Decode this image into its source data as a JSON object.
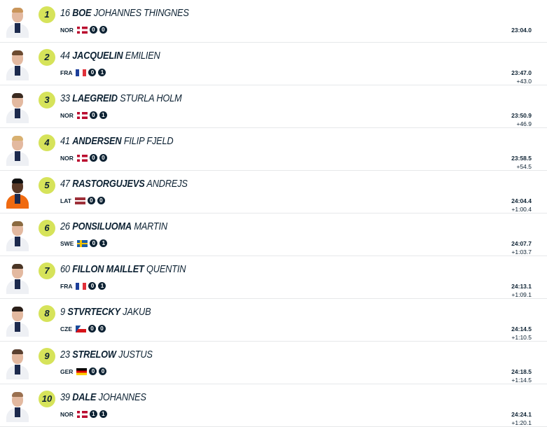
{
  "colors": {
    "rank_badge": "#d6e35a",
    "text": "#0d2233",
    "shot_badge": "#0d2233"
  },
  "athletes": [
    {
      "rank": "1",
      "bib": "16",
      "last": "BOE",
      "first": "JOHANNES THINGNES",
      "nation": "NOR",
      "flag": "norway-flag",
      "shots": [
        "0",
        "0"
      ],
      "time": "23:04.0",
      "gap": ""
    },
    {
      "rank": "2",
      "bib": "44",
      "last": "JACQUELIN",
      "first": "EMILIEN",
      "nation": "FRA",
      "flag": "france-flag",
      "shots": [
        "0",
        "1"
      ],
      "time": "23:47.0",
      "gap": "+43.0"
    },
    {
      "rank": "3",
      "bib": "33",
      "last": "LAEGREID",
      "first": "STURLA HOLM",
      "nation": "NOR",
      "flag": "norway-flag",
      "shots": [
        "0",
        "1"
      ],
      "time": "23:50.9",
      "gap": "+46.9"
    },
    {
      "rank": "4",
      "bib": "41",
      "last": "ANDERSEN",
      "first": "FILIP FJELD",
      "nation": "NOR",
      "flag": "norway-flag",
      "shots": [
        "0",
        "0"
      ],
      "time": "23:58.5",
      "gap": "+54.5"
    },
    {
      "rank": "5",
      "bib": "47",
      "last": "RASTORGUJEVS",
      "first": "ANDREJS",
      "nation": "LAT",
      "flag": "latvia-flag",
      "shots": [
        "0",
        "0"
      ],
      "time": "24:04.4",
      "gap": "+1:00.4"
    },
    {
      "rank": "6",
      "bib": "26",
      "last": "PONSILUOMA",
      "first": "MARTIN",
      "nation": "SWE",
      "flag": "sweden-flag",
      "shots": [
        "0",
        "1"
      ],
      "time": "24:07.7",
      "gap": "+1:03.7"
    },
    {
      "rank": "7",
      "bib": "60",
      "last": "FILLON MAILLET",
      "first": "QUENTIN",
      "nation": "FRA",
      "flag": "france-flag",
      "shots": [
        "0",
        "1"
      ],
      "time": "24:13.1",
      "gap": "+1:09.1"
    },
    {
      "rank": "8",
      "bib": "9",
      "last": "STVRTECKY",
      "first": "JAKUB",
      "nation": "CZE",
      "flag": "czech-flag",
      "shots": [
        "0",
        "0"
      ],
      "time": "24:14.5",
      "gap": "+1:10.5"
    },
    {
      "rank": "9",
      "bib": "23",
      "last": "STRELOW",
      "first": "JUSTUS",
      "nation": "GER",
      "flag": "germany-flag",
      "shots": [
        "0",
        "0"
      ],
      "time": "24:18.5",
      "gap": "+1:14.5"
    },
    {
      "rank": "10",
      "bib": "39",
      "last": "DALE",
      "first": "JOHANNES",
      "nation": "NOR",
      "flag": "norway-flag",
      "shots": [
        "1",
        "1"
      ],
      "time": "24:24.1",
      "gap": "+1:20.1"
    }
  ]
}
